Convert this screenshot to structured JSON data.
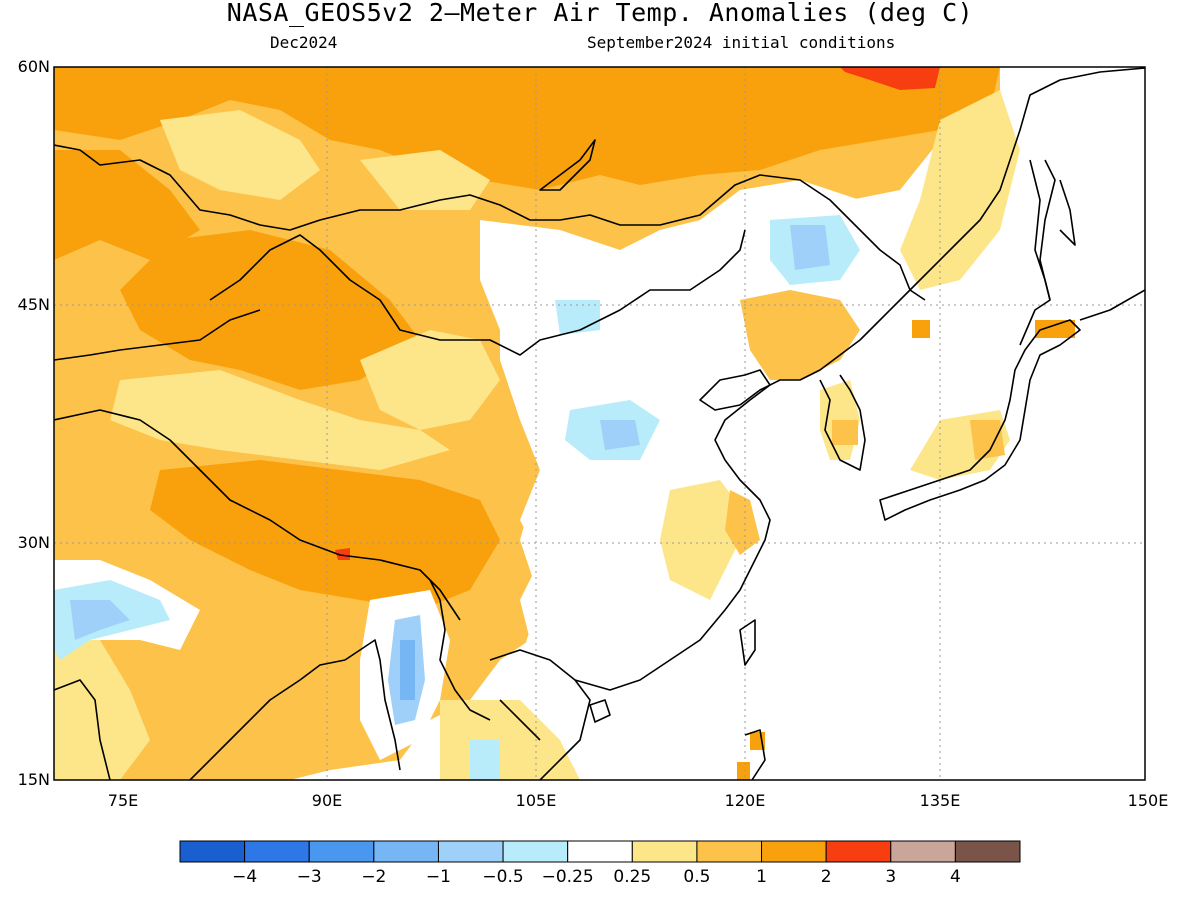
{
  "title": "NASA_GEOS5v2 2–Meter Air Temp. Anomalies (deg C)",
  "subtitle_left": "Dec2024",
  "subtitle_right": "September2024 initial conditions",
  "map": {
    "lon_range": [
      70,
      150
    ],
    "lat_range": [
      15,
      60
    ],
    "lat_ticks": [
      "60N",
      "45N",
      "30N",
      "15N"
    ],
    "lon_ticks": [
      "75E",
      "90E",
      "105E",
      "120E",
      "135E",
      "150E"
    ],
    "grid": true
  },
  "colorbar": {
    "colors": [
      "#1a5fcf",
      "#2d78e6",
      "#4a97f0",
      "#77b6f5",
      "#9fd0fa",
      "#b8ecfa",
      "#ffffff",
      "#fde68a",
      "#fcc24a",
      "#f9a10d",
      "#f73e10",
      "#c9a59a",
      "#7a5448"
    ],
    "labels": [
      "−4",
      "−3",
      "−2",
      "−1",
      "−0.5",
      "−0.25",
      "0.25",
      "0.5",
      "1",
      "2",
      "3",
      "4"
    ]
  }
}
